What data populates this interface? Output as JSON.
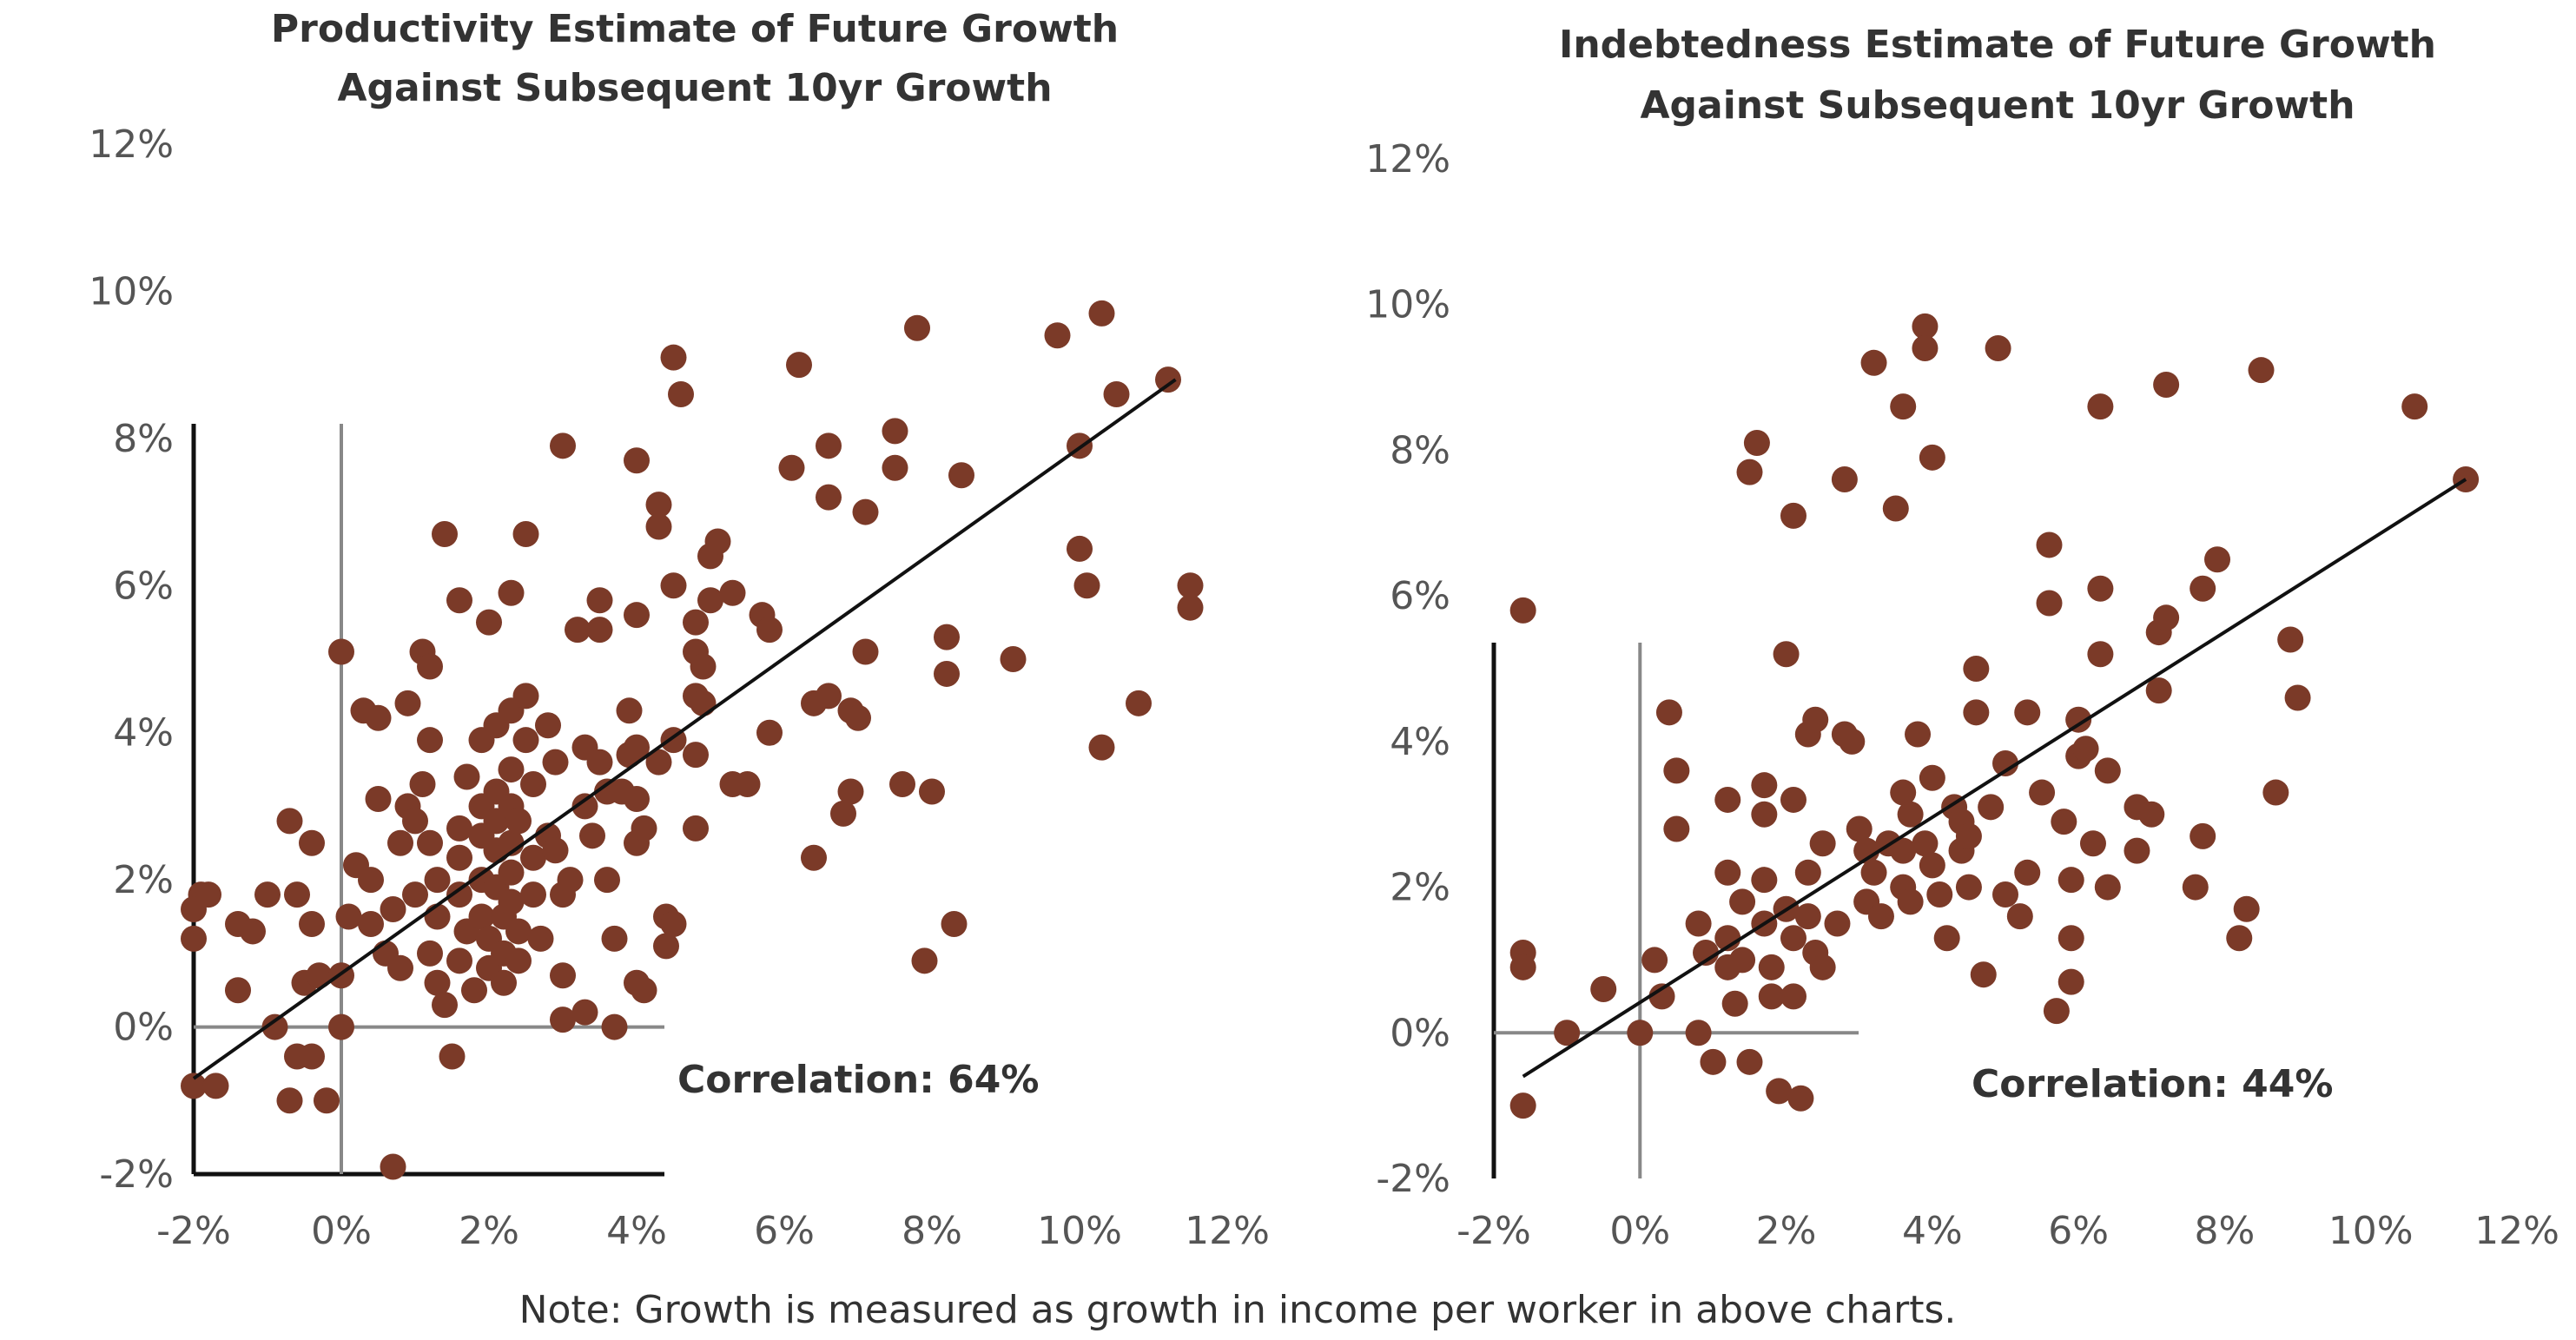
{
  "note": "Note: Growth is measured as growth in income per worker in above charts.",
  "colors": {
    "dot": "#7B3A28",
    "axis": "#111111",
    "zero_line": "#888888",
    "fit_line": "#111111"
  },
  "chart_data": [
    {
      "type": "scatter",
      "title": [
        "Productivity Estimate of Future Growth",
        "Against Subsequent 10yr Growth"
      ],
      "xlabel": "",
      "ylabel": "",
      "xlim": [
        -2,
        12
      ],
      "ylim": [
        -2,
        12
      ],
      "x_ticks": [
        "-2%",
        "0%",
        "2%",
        "4%",
        "6%",
        "8%",
        "10%",
        "12%"
      ],
      "y_ticks": [
        "-2%",
        "0%",
        "2%",
        "4%",
        "6%",
        "8%",
        "10%",
        "12%"
      ],
      "annotation": "Correlation: 64%",
      "grid": false,
      "fit_line": [
        [
          -2,
          -0.7
        ],
        [
          11.3,
          8.8
        ]
      ],
      "points": [
        [
          -1.9,
          1.8
        ],
        [
          -2.0,
          1.6
        ],
        [
          -2.0,
          1.2
        ],
        [
          -1.8,
          1.8
        ],
        [
          -1.4,
          1.4
        ],
        [
          -1.2,
          1.3
        ],
        [
          -1.0,
          1.8
        ],
        [
          -1.4,
          0.5
        ],
        [
          -2.0,
          -0.8
        ],
        [
          -1.7,
          -0.8
        ],
        [
          -0.9,
          0.0
        ],
        [
          -0.7,
          -1.0
        ],
        [
          -0.6,
          -0.4
        ],
        [
          -0.4,
          -0.4
        ],
        [
          -0.2,
          -1.0
        ],
        [
          -0.5,
          0.6
        ],
        [
          -0.3,
          0.7
        ],
        [
          0.0,
          0.7
        ],
        [
          -0.7,
          2.8
        ],
        [
          -0.4,
          2.5
        ],
        [
          -0.6,
          1.8
        ],
        [
          -0.4,
          1.4
        ],
        [
          0.0,
          0.0
        ],
        [
          0.1,
          1.5
        ],
        [
          0.2,
          2.2
        ],
        [
          0.4,
          2.0
        ],
        [
          0.4,
          1.4
        ],
        [
          0.3,
          4.3
        ],
        [
          0.0,
          5.1
        ],
        [
          0.5,
          4.2
        ],
        [
          0.5,
          3.1
        ],
        [
          0.9,
          4.4
        ],
        [
          0.9,
          3.0
        ],
        [
          0.8,
          2.5
        ],
        [
          0.7,
          1.6
        ],
        [
          0.6,
          1.0
        ],
        [
          0.8,
          0.8
        ],
        [
          0.7,
          -1.9
        ],
        [
          1.0,
          1.8
        ],
        [
          1.0,
          2.8
        ],
        [
          1.1,
          3.3
        ],
        [
          1.1,
          5.1
        ],
        [
          1.2,
          4.9
        ],
        [
          1.2,
          3.9
        ],
        [
          1.2,
          2.5
        ],
        [
          1.3,
          2.0
        ],
        [
          1.3,
          1.5
        ],
        [
          1.2,
          1.0
        ],
        [
          1.3,
          0.6
        ],
        [
          1.4,
          0.3
        ],
        [
          1.5,
          -0.4
        ],
        [
          1.4,
          6.7
        ],
        [
          1.6,
          5.8
        ],
        [
          1.7,
          3.4
        ],
        [
          1.6,
          2.7
        ],
        [
          1.6,
          2.3
        ],
        [
          1.6,
          1.8
        ],
        [
          1.7,
          1.3
        ],
        [
          1.6,
          0.9
        ],
        [
          1.8,
          0.5
        ],
        [
          1.9,
          3.9
        ],
        [
          1.9,
          3.0
        ],
        [
          1.9,
          2.6
        ],
        [
          1.9,
          2.0
        ],
        [
          1.9,
          1.5
        ],
        [
          2.0,
          1.2
        ],
        [
          2.0,
          0.8
        ],
        [
          2.1,
          3.2
        ],
        [
          2.1,
          2.8
        ],
        [
          2.1,
          2.4
        ],
        [
          2.1,
          1.9
        ],
        [
          2.2,
          1.5
        ],
        [
          2.2,
          1.0
        ],
        [
          2.2,
          0.6
        ],
        [
          2.0,
          5.5
        ],
        [
          2.1,
          4.1
        ],
        [
          2.3,
          5.9
        ],
        [
          2.3,
          4.3
        ],
        [
          2.3,
          3.5
        ],
        [
          2.3,
          3.0
        ],
        [
          2.3,
          2.5
        ],
        [
          2.3,
          2.1
        ],
        [
          2.3,
          1.7
        ],
        [
          2.4,
          1.3
        ],
        [
          2.4,
          0.9
        ],
        [
          2.4,
          2.8
        ],
        [
          2.5,
          4.5
        ],
        [
          2.5,
          6.7
        ],
        [
          2.5,
          3.9
        ],
        [
          2.6,
          3.3
        ],
        [
          2.6,
          2.3
        ],
        [
          2.6,
          1.8
        ],
        [
          2.7,
          1.2
        ],
        [
          2.8,
          2.6
        ],
        [
          2.8,
          4.1
        ],
        [
          3.0,
          7.9
        ],
        [
          2.9,
          3.6
        ],
        [
          2.9,
          2.4
        ],
        [
          3.0,
          1.8
        ],
        [
          3.0,
          0.7
        ],
        [
          3.0,
          0.1
        ],
        [
          3.1,
          2.0
        ],
        [
          3.2,
          5.4
        ],
        [
          3.3,
          3.8
        ],
        [
          3.3,
          3.0
        ],
        [
          3.4,
          2.6
        ],
        [
          3.3,
          0.2
        ],
        [
          3.5,
          5.8
        ],
        [
          3.5,
          5.4
        ],
        [
          3.5,
          3.6
        ],
        [
          3.6,
          3.2
        ],
        [
          3.6,
          2.0
        ],
        [
          3.7,
          1.2
        ],
        [
          3.7,
          0.0
        ],
        [
          3.8,
          3.2
        ],
        [
          3.9,
          4.3
        ],
        [
          3.9,
          3.7
        ],
        [
          4.0,
          7.7
        ],
        [
          4.0,
          5.6
        ],
        [
          4.0,
          3.8
        ],
        [
          4.0,
          3.1
        ],
        [
          4.0,
          2.5
        ],
        [
          4.0,
          0.6
        ],
        [
          4.1,
          2.7
        ],
        [
          4.1,
          0.5
        ],
        [
          4.3,
          7.1
        ],
        [
          4.3,
          6.8
        ],
        [
          4.3,
          3.6
        ],
        [
          4.4,
          1.5
        ],
        [
          4.4,
          1.1
        ],
        [
          4.5,
          9.1
        ],
        [
          4.5,
          6.0
        ],
        [
          4.5,
          3.9
        ],
        [
          4.5,
          1.4
        ],
        [
          4.6,
          8.6
        ],
        [
          4.8,
          5.5
        ],
        [
          4.8,
          5.1
        ],
        [
          4.8,
          4.5
        ],
        [
          4.8,
          3.7
        ],
        [
          4.8,
          2.7
        ],
        [
          4.9,
          4.9
        ],
        [
          4.9,
          4.4
        ],
        [
          5.0,
          5.8
        ],
        [
          5.0,
          6.4
        ],
        [
          5.1,
          6.6
        ],
        [
          5.3,
          5.9
        ],
        [
          5.3,
          3.3
        ],
        [
          5.5,
          3.3
        ],
        [
          5.7,
          5.6
        ],
        [
          5.8,
          5.4
        ],
        [
          5.8,
          4.0
        ],
        [
          6.1,
          7.6
        ],
        [
          6.2,
          9.0
        ],
        [
          6.4,
          4.4
        ],
        [
          6.4,
          2.3
        ],
        [
          6.6,
          7.2
        ],
        [
          6.6,
          7.9
        ],
        [
          6.6,
          4.5
        ],
        [
          6.8,
          2.9
        ],
        [
          6.9,
          3.2
        ],
        [
          6.9,
          4.3
        ],
        [
          7.0,
          4.2
        ],
        [
          7.1,
          7.0
        ],
        [
          7.1,
          5.1
        ],
        [
          7.5,
          8.1
        ],
        [
          7.5,
          7.6
        ],
        [
          7.6,
          3.3
        ],
        [
          7.8,
          9.5
        ],
        [
          7.9,
          0.9
        ],
        [
          8.0,
          3.2
        ],
        [
          8.2,
          5.3
        ],
        [
          8.2,
          4.8
        ],
        [
          8.3,
          1.4
        ],
        [
          8.4,
          7.5
        ],
        [
          9.1,
          5.0
        ],
        [
          9.7,
          9.4
        ],
        [
          10.0,
          7.9
        ],
        [
          10.0,
          6.5
        ],
        [
          10.1,
          6.0
        ],
        [
          10.3,
          9.7
        ],
        [
          10.3,
          3.8
        ],
        [
          10.5,
          8.6
        ],
        [
          10.8,
          4.4
        ],
        [
          11.2,
          8.8
        ],
        [
          11.5,
          6.0
        ],
        [
          11.5,
          5.7
        ]
      ]
    },
    {
      "type": "scatter",
      "title": [
        "Indebtedness Estimate of Future Growth",
        "Against Subsequent 10yr Growth"
      ],
      "xlabel": "",
      "ylabel": "",
      "xlim": [
        -2,
        12
      ],
      "ylim": [
        -2,
        12
      ],
      "x_ticks": [
        "-2%",
        "0%",
        "2%",
        "4%",
        "6%",
        "8%",
        "10%",
        "12%"
      ],
      "y_ticks": [
        "-2%",
        "0%",
        "2%",
        "4%",
        "6%",
        "8%",
        "10%",
        "12%"
      ],
      "annotation": "Correlation: 44%",
      "grid": false,
      "fit_line": [
        [
          -1.6,
          -0.6
        ],
        [
          11.3,
          7.6
        ]
      ],
      "points": [
        [
          -1.6,
          5.8
        ],
        [
          -1.6,
          1.1
        ],
        [
          -1.6,
          0.9
        ],
        [
          -1.6,
          -1.0
        ],
        [
          -1.0,
          0.0
        ],
        [
          -0.5,
          0.6
        ],
        [
          0.0,
          0.0
        ],
        [
          0.2,
          1.0
        ],
        [
          0.3,
          0.5
        ],
        [
          0.4,
          4.4
        ],
        [
          0.5,
          3.6
        ],
        [
          0.5,
          2.8
        ],
        [
          0.8,
          0.0
        ],
        [
          0.8,
          1.5
        ],
        [
          0.9,
          1.1
        ],
        [
          1.0,
          -0.4
        ],
        [
          1.2,
          3.2
        ],
        [
          1.2,
          2.2
        ],
        [
          1.2,
          1.3
        ],
        [
          1.2,
          0.9
        ],
        [
          1.3,
          0.4
        ],
        [
          1.4,
          1.8
        ],
        [
          1.4,
          1.0
        ],
        [
          1.5,
          -0.4
        ],
        [
          1.5,
          7.7
        ],
        [
          1.6,
          8.1
        ],
        [
          1.7,
          3.0
        ],
        [
          1.7,
          3.4
        ],
        [
          1.7,
          2.1
        ],
        [
          1.7,
          1.5
        ],
        [
          1.8,
          0.9
        ],
        [
          1.8,
          0.5
        ],
        [
          1.9,
          -0.8
        ],
        [
          2.0,
          5.2
        ],
        [
          2.0,
          1.7
        ],
        [
          2.1,
          7.1
        ],
        [
          2.1,
          3.2
        ],
        [
          2.1,
          1.3
        ],
        [
          2.1,
          0.5
        ],
        [
          2.2,
          -0.9
        ],
        [
          2.3,
          4.1
        ],
        [
          2.3,
          2.2
        ],
        [
          2.3,
          1.6
        ],
        [
          2.4,
          4.3
        ],
        [
          2.4,
          1.1
        ],
        [
          2.5,
          2.6
        ],
        [
          2.5,
          0.9
        ],
        [
          2.7,
          1.5
        ],
        [
          2.8,
          4.1
        ],
        [
          2.8,
          7.6
        ],
        [
          2.9,
          4.0
        ],
        [
          3.0,
          2.8
        ],
        [
          3.1,
          2.5
        ],
        [
          3.1,
          1.8
        ],
        [
          3.2,
          9.2
        ],
        [
          3.2,
          2.2
        ],
        [
          3.3,
          1.6
        ],
        [
          3.4,
          2.6
        ],
        [
          3.5,
          7.2
        ],
        [
          3.6,
          3.3
        ],
        [
          3.6,
          2.5
        ],
        [
          3.6,
          8.6
        ],
        [
          3.6,
          2.0
        ],
        [
          3.7,
          3.0
        ],
        [
          3.7,
          1.8
        ],
        [
          3.8,
          4.1
        ],
        [
          3.9,
          9.7
        ],
        [
          3.9,
          9.4
        ],
        [
          3.9,
          2.6
        ],
        [
          4.0,
          7.9
        ],
        [
          4.0,
          3.5
        ],
        [
          4.0,
          2.3
        ],
        [
          4.1,
          1.9
        ],
        [
          4.2,
          1.3
        ],
        [
          4.3,
          3.1
        ],
        [
          4.4,
          2.9
        ],
        [
          4.4,
          2.5
        ],
        [
          4.5,
          2.7
        ],
        [
          4.5,
          2.0
        ],
        [
          4.6,
          4.4
        ],
        [
          4.6,
          5.0
        ],
        [
          4.7,
          0.8
        ],
        [
          4.8,
          3.1
        ],
        [
          4.9,
          9.4
        ],
        [
          5.0,
          1.9
        ],
        [
          5.0,
          3.7
        ],
        [
          5.2,
          1.6
        ],
        [
          5.3,
          2.2
        ],
        [
          5.3,
          4.4
        ],
        [
          5.5,
          3.3
        ],
        [
          5.6,
          6.7
        ],
        [
          5.6,
          5.9
        ],
        [
          5.7,
          0.3
        ],
        [
          5.8,
          2.9
        ],
        [
          5.9,
          2.1
        ],
        [
          5.9,
          1.3
        ],
        [
          5.9,
          0.7
        ],
        [
          6.0,
          4.3
        ],
        [
          6.0,
          3.8
        ],
        [
          6.1,
          3.9
        ],
        [
          6.2,
          2.6
        ],
        [
          6.3,
          6.1
        ],
        [
          6.3,
          8.6
        ],
        [
          6.3,
          5.2
        ],
        [
          6.4,
          3.6
        ],
        [
          6.4,
          2.0
        ],
        [
          6.8,
          2.5
        ],
        [
          6.8,
          3.1
        ],
        [
          7.0,
          3.0
        ],
        [
          7.1,
          5.5
        ],
        [
          7.1,
          4.7
        ],
        [
          7.2,
          5.7
        ],
        [
          7.2,
          8.9
        ],
        [
          7.6,
          2.0
        ],
        [
          7.7,
          2.7
        ],
        [
          7.7,
          6.1
        ],
        [
          7.9,
          6.5
        ],
        [
          8.2,
          1.3
        ],
        [
          8.3,
          1.7
        ],
        [
          8.5,
          9.1
        ],
        [
          8.7,
          3.3
        ],
        [
          8.9,
          5.4
        ],
        [
          9.0,
          4.6
        ],
        [
          10.6,
          8.6
        ],
        [
          11.3,
          7.6
        ]
      ]
    }
  ]
}
